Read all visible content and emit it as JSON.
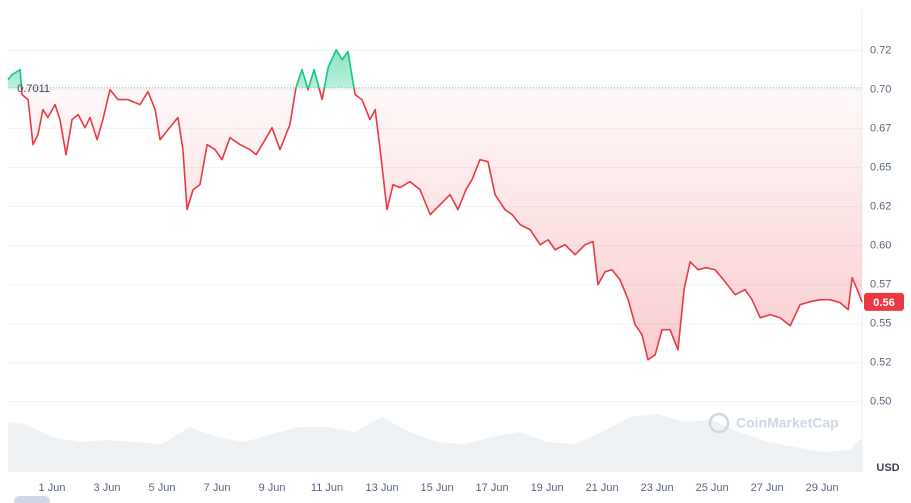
{
  "chart_data": {
    "type": "line",
    "baseline": {
      "value": 0.7011,
      "label": "0.7011"
    },
    "current_price": {
      "value": 0.564,
      "label": "0.56"
    },
    "currency": "USD",
    "watermark": "CoinMarketCap",
    "up_color": "#16c784",
    "down_color": "#ea3943",
    "grid": true,
    "xlim": [
      -0.6,
      30.45
    ],
    "xticks": [
      {
        "value": 1,
        "label": "1 Jun"
      },
      {
        "value": 3,
        "label": "3 Jun"
      },
      {
        "value": 5,
        "label": "5 Jun"
      },
      {
        "value": 7,
        "label": "7 Jun"
      },
      {
        "value": 9,
        "label": "9 Jun"
      },
      {
        "value": 11,
        "label": "11 Jun"
      },
      {
        "value": 13,
        "label": "13 Jun"
      },
      {
        "value": 15,
        "label": "15 Jun"
      },
      {
        "value": 17,
        "label": "17 Jun"
      },
      {
        "value": 19,
        "label": "19 Jun"
      },
      {
        "value": 21,
        "label": "21 Jun"
      },
      {
        "value": 23,
        "label": "23 Jun"
      },
      {
        "value": 25,
        "label": "25 Jun"
      },
      {
        "value": 27,
        "label": "27 Jun"
      },
      {
        "value": 29,
        "label": "29 Jun"
      }
    ],
    "ylim": [
      0.455,
      0.751
    ],
    "yticks": [
      {
        "value": 0.725,
        "label": "0.72"
      },
      {
        "value": 0.7,
        "label": "0.70"
      },
      {
        "value": 0.675,
        "label": "0.67"
      },
      {
        "value": 0.65,
        "label": "0.65"
      },
      {
        "value": 0.625,
        "label": "0.62"
      },
      {
        "value": 0.6,
        "label": "0.60"
      },
      {
        "value": 0.575,
        "label": "0.57"
      },
      {
        "value": 0.55,
        "label": "0.55"
      },
      {
        "value": 0.525,
        "label": "0.52"
      },
      {
        "value": 0.5,
        "label": "0.50"
      }
    ],
    "x": [
      -0.6,
      -0.45,
      -0.16,
      -0.09,
      0.13,
      0.31,
      0.49,
      0.67,
      0.85,
      1.11,
      1.29,
      1.51,
      1.73,
      1.95,
      2.2,
      2.38,
      2.64,
      2.85,
      3.11,
      3.4,
      3.76,
      4.2,
      4.49,
      4.75,
      4.93,
      5.22,
      5.58,
      5.76,
      5.91,
      6.13,
      6.38,
      6.64,
      6.93,
      7.18,
      7.47,
      7.84,
      8.2,
      8.42,
      8.75,
      9.0,
      9.29,
      9.65,
      9.87,
      10.09,
      10.31,
      10.53,
      10.82,
      11.04,
      11.33,
      11.55,
      11.76,
      12.02,
      12.27,
      12.56,
      12.75,
      12.93,
      13.18,
      13.4,
      13.65,
      14.02,
      14.38,
      14.75,
      15.11,
      15.47,
      15.76,
      16.05,
      16.27,
      16.56,
      16.85,
      17.11,
      17.47,
      17.73,
      18.02,
      18.38,
      18.75,
      19.04,
      19.29,
      19.65,
      20.02,
      20.38,
      20.67,
      20.85,
      21.11,
      21.36,
      21.65,
      21.95,
      22.2,
      22.45,
      22.67,
      22.93,
      23.18,
      23.47,
      23.76,
      23.98,
      24.2,
      24.49,
      24.78,
      25.11,
      25.47,
      25.84,
      26.2,
      26.45,
      26.75,
      27.11,
      27.47,
      27.84,
      28.2,
      28.56,
      28.93,
      29.29,
      29.65,
      29.95,
      30.09,
      30.31,
      30.45
    ],
    "series": [
      {
        "values": [
          0.7064,
          0.7096,
          0.7128,
          0.6968,
          0.6936,
          0.6647,
          0.6712,
          0.6872,
          0.6821,
          0.6904,
          0.6808,
          0.6583,
          0.6808,
          0.684,
          0.6756,
          0.6821,
          0.6679,
          0.6808,
          0.7,
          0.6936,
          0.6936,
          0.6904,
          0.6987,
          0.6872,
          0.6679,
          0.6744,
          0.6821,
          0.6615,
          0.6231,
          0.6359,
          0.6391,
          0.6647,
          0.6615,
          0.6551,
          0.6692,
          0.6647,
          0.6615,
          0.6583,
          0.6679,
          0.6756,
          0.6615,
          0.6776,
          0.7013,
          0.7128,
          0.7,
          0.7128,
          0.6936,
          0.7141,
          0.7256,
          0.7192,
          0.7244,
          0.6968,
          0.6936,
          0.6808,
          0.6872,
          0.6615,
          0.6231,
          0.6391,
          0.6372,
          0.641,
          0.6359,
          0.6199,
          0.6263,
          0.6327,
          0.6231,
          0.6359,
          0.6423,
          0.6551,
          0.6538,
          0.6327,
          0.6231,
          0.6199,
          0.6135,
          0.6103,
          0.6006,
          0.6038,
          0.5974,
          0.6006,
          0.5942,
          0.6006,
          0.6026,
          0.575,
          0.5833,
          0.5846,
          0.5782,
          0.5654,
          0.5494,
          0.543,
          0.5269,
          0.5301,
          0.5462,
          0.5462,
          0.5333,
          0.5718,
          0.5897,
          0.5846,
          0.5859,
          0.5846,
          0.5769,
          0.5686,
          0.5718,
          0.5654,
          0.5538,
          0.5558,
          0.5538,
          0.5487,
          0.5622,
          0.5641,
          0.5654,
          0.5654,
          0.5635,
          0.559,
          0.5795,
          0.5705,
          0.564
        ]
      }
    ],
    "volume": {
      "color": "#eff2f5",
      "lim": [
        0,
        60
      ],
      "x": [
        -0.6,
        0,
        1,
        2,
        3,
        4,
        5,
        6,
        7,
        8,
        9,
        10,
        11,
        12,
        13,
        14,
        15,
        16,
        17,
        18,
        19,
        20,
        21,
        22,
        23,
        24,
        25,
        26,
        27,
        28,
        29,
        30,
        30.45
      ],
      "values": [
        50,
        48,
        35,
        30,
        32,
        30,
        28,
        45,
        35,
        30,
        38,
        45,
        45,
        40,
        55,
        40,
        30,
        28,
        35,
        40,
        30,
        28,
        40,
        55,
        58,
        50,
        52,
        40,
        30,
        25,
        20,
        22,
        35
      ]
    }
  }
}
